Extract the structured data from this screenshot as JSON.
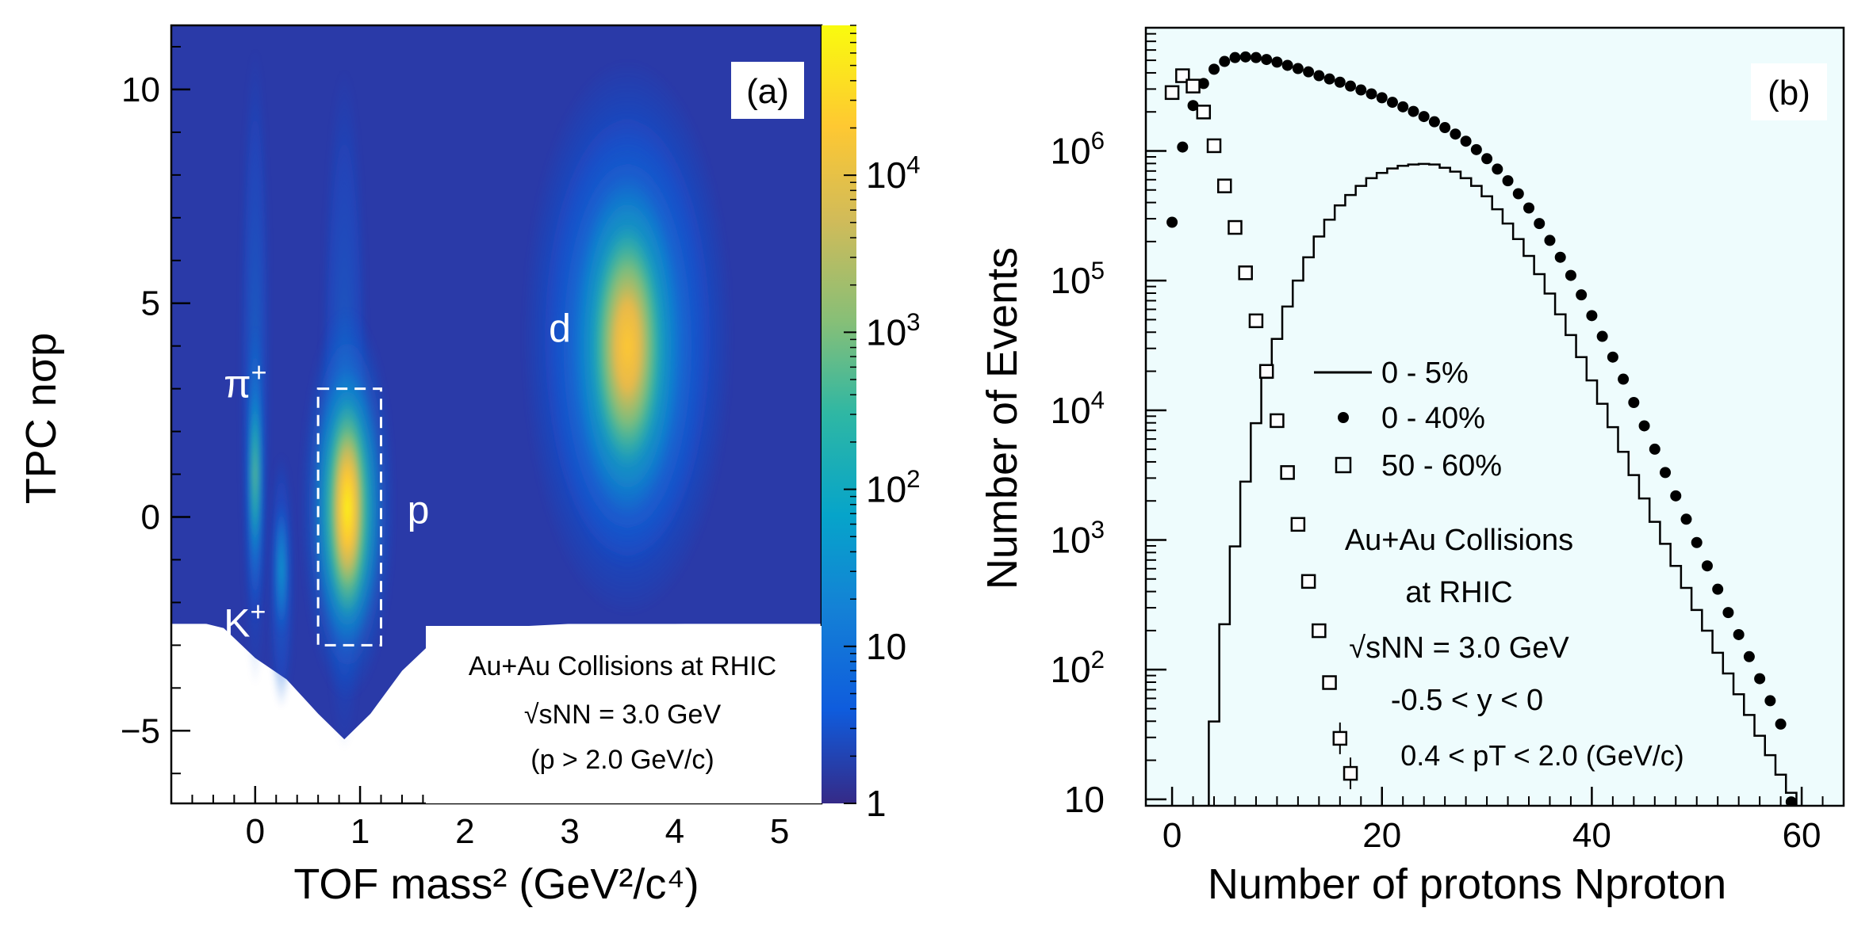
{
  "chart_data": [
    {
      "type": "heatmap",
      "panel_label": "(a)",
      "xlabel": "TOF mass² (GeV²/c⁴)",
      "ylabel": "TPC nσp",
      "xlim": [
        -0.8,
        5.4
      ],
      "ylim": [
        -6.7,
        11.5
      ],
      "xticks": [
        0,
        1,
        2,
        3,
        4,
        5
      ],
      "yticks": [
        -5,
        0,
        5,
        10
      ],
      "color_scale": {
        "type": "log",
        "range": [
          1,
          90000
        ],
        "ticks": [
          {
            "value": 1,
            "label": "1"
          },
          {
            "value": 10,
            "label": "10"
          },
          {
            "value": 100,
            "label": "10",
            "exp": "2"
          },
          {
            "value": 1000,
            "label": "10",
            "exp": "3"
          },
          {
            "value": 10000,
            "label": "10",
            "exp": "4"
          }
        ],
        "colors": [
          "#352a87",
          "#0f5cdd",
          "#1481d6",
          "#06a4ca",
          "#2eb7a4",
          "#87bf77",
          "#d1bb59",
          "#fec832",
          "#f9fb0e"
        ]
      },
      "particle_labels": [
        {
          "name": "π",
          "sup": "+",
          "x": -0.3,
          "y": 2.8
        },
        {
          "name": "K",
          "sup": "+",
          "x": -0.3,
          "y": -2.8
        },
        {
          "name": "p",
          "sup": "",
          "x": 1.45,
          "y": -0.15
        },
        {
          "name": "d",
          "sup": "",
          "x": 2.8,
          "y": 4.1
        }
      ],
      "selection_box": {
        "x": [
          0.6,
          1.2
        ],
        "y": [
          -3.0,
          3.0
        ]
      },
      "annotation": [
        "Au+Au Collisions at RHIC",
        "√sNN = 3.0 GeV",
        "(p > 2.0 GeV/c)"
      ]
    },
    {
      "type": "scatter",
      "panel_label": "(b)",
      "xlabel": "Number of protons Nproton",
      "ylabel": "Number of Events",
      "xlim": [
        -2.5,
        64
      ],
      "ylim_log10": [
        0.95,
        6.95
      ],
      "xticks": [
        0,
        20,
        40,
        60
      ],
      "yticks": [
        {
          "value": 10,
          "label": "10",
          "exp": ""
        },
        {
          "value": 100,
          "label": "10",
          "exp": "2"
        },
        {
          "value": 1000,
          "label": "10",
          "exp": "3"
        },
        {
          "value": 10000,
          "label": "10",
          "exp": "4"
        },
        {
          "value": 100000,
          "label": "10",
          "exp": "5"
        },
        {
          "value": 1000000,
          "label": "10",
          "exp": "6"
        }
      ],
      "series": [
        {
          "name": "0 - 5%",
          "style": "step",
          "x": [
            4,
            5,
            6,
            7,
            8,
            9,
            10,
            11,
            12,
            13,
            14,
            15,
            16,
            17,
            18,
            19,
            20,
            21,
            22,
            23,
            24,
            25,
            26,
            27,
            28,
            29,
            30,
            31,
            32,
            33,
            34,
            35,
            36,
            37,
            38,
            39,
            40,
            41,
            42,
            43,
            44,
            45,
            46,
            47,
            48,
            49,
            50,
            51,
            52,
            53,
            54,
            55,
            56,
            57,
            58,
            59
          ],
          "log10_y": [
            1.6,
            2.35,
            2.95,
            3.45,
            3.9,
            4.25,
            4.55,
            4.8,
            5.0,
            5.18,
            5.34,
            5.47,
            5.58,
            5.66,
            5.73,
            5.79,
            5.83,
            5.865,
            5.885,
            5.895,
            5.9,
            5.895,
            5.87,
            5.84,
            5.79,
            5.73,
            5.65,
            5.55,
            5.44,
            5.32,
            5.19,
            5.05,
            4.9,
            4.74,
            4.58,
            4.41,
            4.23,
            4.05,
            3.87,
            3.68,
            3.5,
            3.32,
            3.14,
            2.97,
            2.8,
            2.63,
            2.46,
            2.3,
            2.13,
            1.97,
            1.81,
            1.65,
            1.49,
            1.34,
            1.19,
            1.05
          ]
        },
        {
          "name": "0 - 40%",
          "style": "dot",
          "x": [
            0,
            1,
            2,
            3,
            4,
            5,
            6,
            7,
            8,
            9,
            10,
            11,
            12,
            13,
            14,
            15,
            16,
            17,
            18,
            19,
            20,
            21,
            22,
            23,
            24,
            25,
            26,
            27,
            28,
            29,
            30,
            31,
            32,
            33,
            34,
            35,
            36,
            37,
            38,
            39,
            40,
            41,
            42,
            43,
            44,
            45,
            46,
            47,
            48,
            49,
            50,
            51,
            52,
            53,
            54,
            55,
            56,
            57,
            58,
            59
          ],
          "log10_y": [
            5.45,
            6.03,
            6.35,
            6.52,
            6.63,
            6.69,
            6.72,
            6.725,
            6.72,
            6.705,
            6.685,
            6.66,
            6.635,
            6.61,
            6.58,
            6.555,
            6.53,
            6.5,
            6.47,
            6.44,
            6.41,
            6.375,
            6.34,
            6.305,
            6.265,
            6.225,
            6.18,
            6.13,
            6.075,
            6.01,
            5.94,
            5.86,
            5.77,
            5.67,
            5.56,
            5.44,
            5.31,
            5.18,
            5.04,
            4.89,
            4.73,
            4.57,
            4.41,
            4.24,
            4.06,
            3.88,
            3.7,
            3.52,
            3.34,
            3.16,
            2.98,
            2.8,
            2.62,
            2.44,
            2.27,
            2.1,
            1.93,
            1.76,
            1.58,
            0.98
          ]
        },
        {
          "name": "50 - 60%",
          "style": "square",
          "x": [
            0,
            1,
            2,
            3,
            4,
            5,
            6,
            7,
            8,
            9,
            10,
            11,
            12,
            13,
            14,
            15,
            16,
            17
          ],
          "log10_y": [
            6.45,
            6.58,
            6.5,
            6.3,
            6.04,
            5.73,
            5.41,
            5.06,
            4.69,
            4.3,
            3.92,
            3.52,
            3.12,
            2.68,
            2.3,
            1.9,
            1.47,
            1.2
          ]
        }
      ],
      "annotation": [
        "Au+Au Collisions",
        "at RHIC",
        "√sNN = 3.0 GeV",
        "-0.5 < y < 0",
        "0.4 < pT < 2.0 (GeV/c)"
      ]
    }
  ]
}
